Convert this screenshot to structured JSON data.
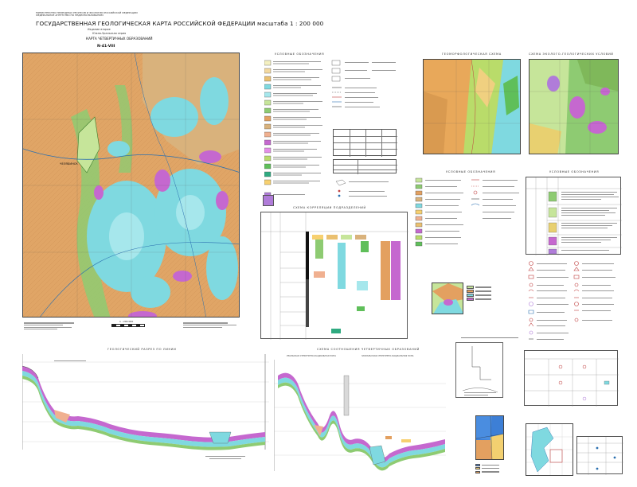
{
  "header": {
    "line1": "МИНИСТЕРСТВО ПРИРОДНЫХ РЕСУРСОВ И ЭКОЛОГИИ РОССИЙСКОЙ ФЕДЕРАЦИИ",
    "line2": "ФЕДЕРАЛЬНОЕ АГЕНТСТВО ПО НЕДРОПОЛЬЗОВАНИЮ",
    "title": "ГОСУДАРСТВЕННАЯ ГЕОЛОГИЧЕСКАЯ КАРТА РОССИЙСКОЙ ФЕДЕРАЦИИ  масштаба  1 : 200 000",
    "edition": "Издание второе",
    "series": "Южно-Уральская серия",
    "map_title": "КАРТА ЧЕТВЕРТИЧНЫХ ОБРАЗОВАНИЙ",
    "sheet": "N-41-VIII"
  },
  "sections": {
    "legend": "УСЛОВНЫЕ ОБОЗНАЧЕНИЯ",
    "geomorph": "ГЕОМОРФОЛОГИЧЕСКАЯ СХЕМА",
    "ecogeo": "СХЕМА ЭКОЛОГО-ГЕОЛОГИЧЕСКИХ УСЛОВИЙ",
    "correlation": "СХЕМА КОРРЕЛЯЦИИ ПОДРАЗДЕЛЕНИЙ",
    "section_profile": "ГЕОЛОГИЧЕСКИЙ РАЗРЕЗ ПО ЛИНИИ",
    "relation_scheme": "СХЕМА СООТНОШЕНИЯ ЧЕТВЕРТИЧНЫХ ОБРАЗОВАНИЙ",
    "legend2": "УСЛОВНЫЕ ОБОЗНАЧЕНИЯ",
    "legend3": "УСЛОВНЫЕ ОБОЗНАЧЕНИЯ",
    "zone1": "УРАЛЬСКАЯ СТРУКТУРНО-ФАЦИАЛЬНАЯ ЗОНА",
    "zone2": "ЗАУРАЛЬСКАЯ СТРУКТУРНО-ФАЦИАЛЬНАЯ ЗОНА"
  },
  "map": {
    "scale_label": "1 : 200 000",
    "city_label": "ЧЕЛЯБИНСК"
  },
  "palette": {
    "orange": "#e3a060",
    "tan": "#d9b27c",
    "cyan": "#7fd9e0",
    "green": "#8ecb72",
    "magenta": "#c568cf",
    "lightgreen": "#c6e59a",
    "salmon": "#f0b090"
  },
  "icons": {
    "north": "compass-icon",
    "scale": "scale-bar-icon"
  }
}
